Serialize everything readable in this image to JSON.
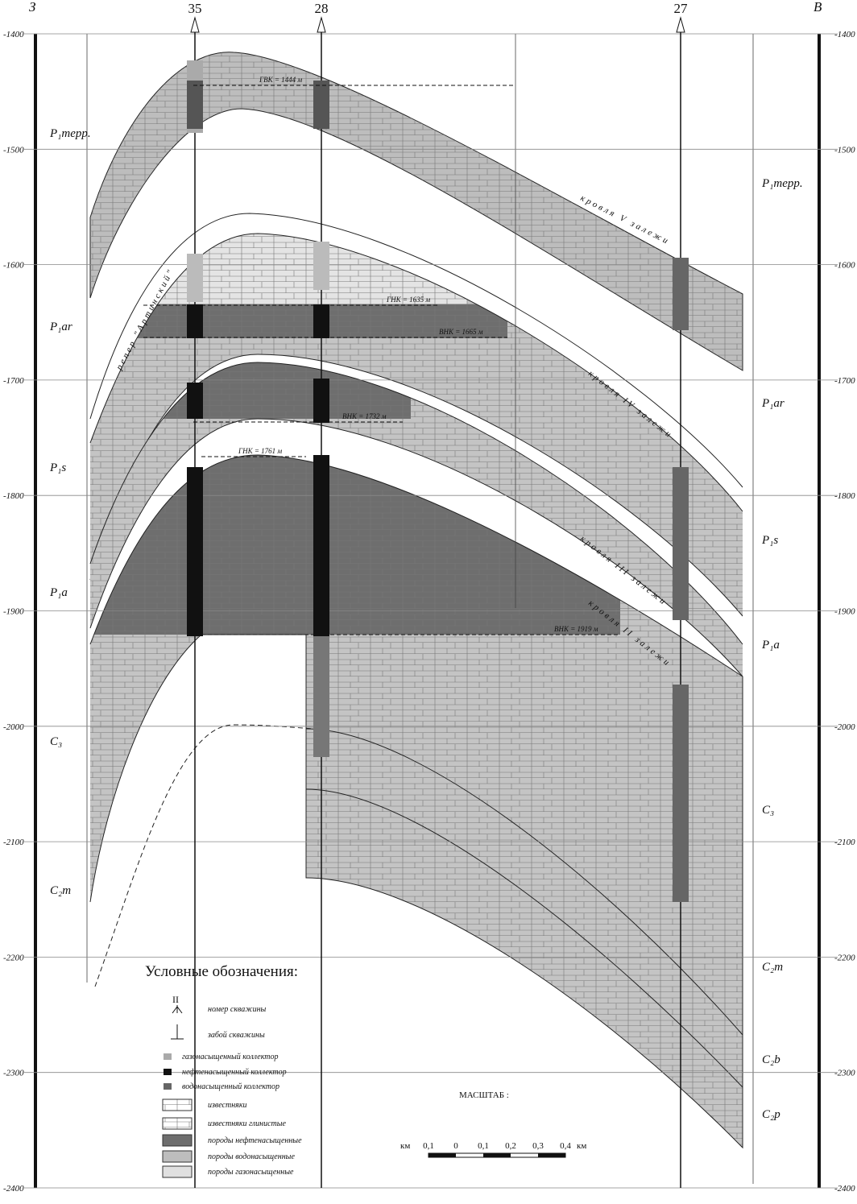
{
  "header": {
    "left": "З",
    "right": "В"
  },
  "wells": [
    {
      "label": "35"
    },
    {
      "label": "28"
    },
    {
      "label": "27"
    }
  ],
  "depth_ticks": [
    -1400,
    -1500,
    -1600,
    -1700,
    -1800,
    -1900,
    -2000,
    -2100,
    -2200,
    -2300,
    -2400
  ],
  "strata_left": [
    "P₁терр.",
    "P₁ar",
    "P₁s",
    "P₁a",
    "C₃",
    "C₂m"
  ],
  "strata_right": [
    "P₁терр.",
    "P₁ar",
    "P₁s",
    "P₁a",
    "C₃",
    "C₂m",
    "C₂b",
    "C₂p"
  ],
  "contacts": [
    "ГВК = 1444 м",
    "ГНК = 1635 м",
    "ВНК = 1665 м",
    "ВНК = 1732 м",
    "ГНК = 1761 м",
    "ВНК = 1919 м"
  ],
  "horizons": [
    "кровля V залежи",
    "кровля IV залежи",
    "кровля III залежи",
    "кровля II залежи",
    "репер \"Артинский\""
  ],
  "legend": {
    "title": "Условные обозначения:",
    "well_symbol": "II",
    "items": [
      "номер скважины",
      "забой скважины",
      "газонасыщенный коллектор",
      "нефтенасыщенный коллектор",
      "водонасыщенный коллектор",
      "известняки",
      "известняки глинистые",
      "породы нефтенасыщенные",
      "породы водонасыщенные",
      "породы газонасыщенные"
    ]
  },
  "scale": {
    "title": "МАСШТАБ :",
    "unit_left": "км",
    "marks": [
      "0,1",
      "0",
      "0,1",
      "0,2",
      "0,3",
      "0,4"
    ],
    "unit_right": "км"
  }
}
